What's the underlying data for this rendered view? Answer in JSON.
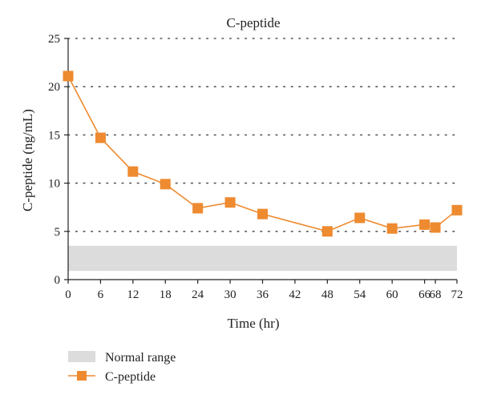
{
  "chart_data": {
    "type": "line",
    "title": "C-peptide",
    "xlabel": "Time (hr)",
    "ylabel": "C-peptide (ng/mL)",
    "x_ticks": [
      0,
      6,
      12,
      18,
      24,
      30,
      36,
      42,
      48,
      54,
      60,
      66,
      68,
      72
    ],
    "y_ticks": [
      0,
      5,
      10,
      15,
      20,
      25
    ],
    "ylim": [
      0,
      25
    ],
    "grid": "horizontal dotted",
    "legend_position": "bottom-left",
    "normal_range": {
      "label": "Normal range",
      "low": 0.9,
      "high": 3.5,
      "color": "#dcdcdc"
    },
    "series": [
      {
        "name": "C-peptide",
        "color": "#ee8a30",
        "marker": "square",
        "x": [
          0,
          6,
          12,
          18,
          24,
          30,
          36,
          48,
          54,
          60,
          66,
          68,
          72
        ],
        "values": [
          21.1,
          14.7,
          11.2,
          9.9,
          7.4,
          8.0,
          6.8,
          5.0,
          6.4,
          5.3,
          5.7,
          5.4,
          7.2
        ]
      }
    ]
  }
}
